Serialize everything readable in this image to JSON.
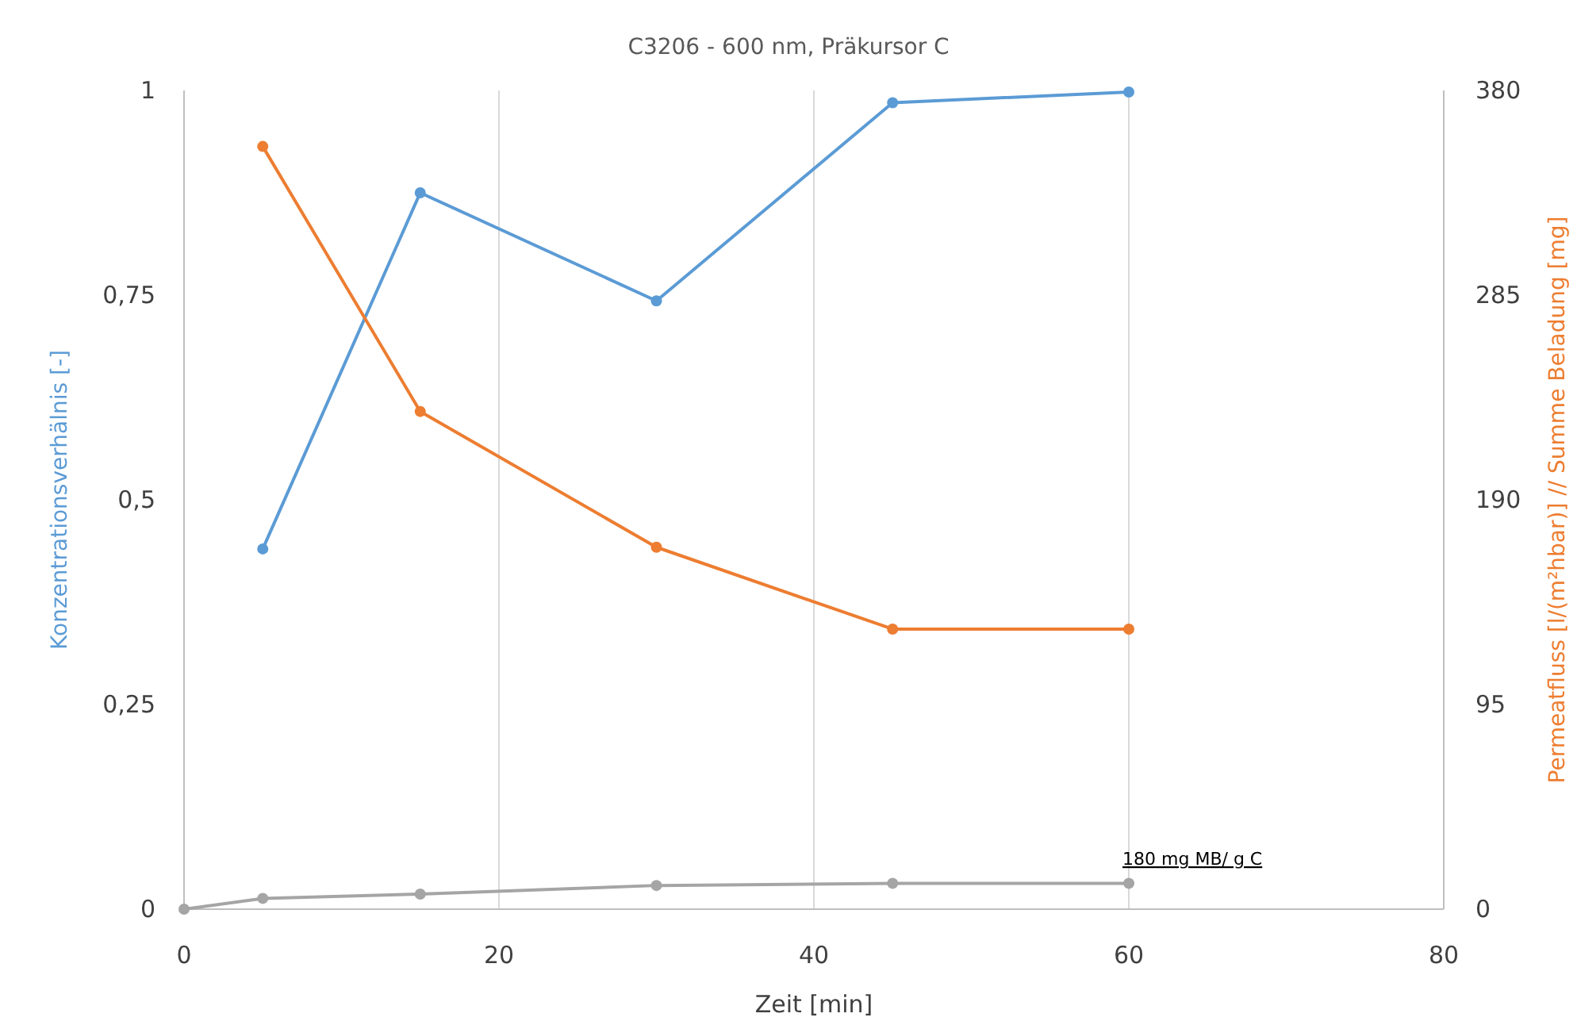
{
  "chart_data": {
    "type": "line",
    "title": "C3206 - 600 nm, Präkursor C",
    "xlabel": "Zeit [min]",
    "ylabel": "Konzentrationsverhälnis [-]",
    "y2label": "Permeatfluss [l/(m²hbar)] // Summe Beladung [mg]",
    "xlim": [
      0,
      80
    ],
    "xticks": [
      0,
      20,
      40,
      60,
      80
    ],
    "ylim": [
      0,
      1
    ],
    "yticks": [
      0,
      {
        "value": 0.25,
        "label": "0,25"
      },
      {
        "value": 0.5,
        "label": "0,5"
      },
      {
        "value": 0.75,
        "label": "0,75"
      },
      1
    ],
    "y2lim": [
      0,
      380
    ],
    "y2ticks": [
      0,
      95,
      190,
      285,
      380
    ],
    "grid": "x",
    "marker": "circle",
    "line_style": "solid",
    "series": [
      {
        "color": "#5b9bd5",
        "x": [
          5,
          15,
          30,
          45,
          60
        ],
        "values": [
          0.44,
          0.875,
          0.743,
          0.985,
          0.998
        ]
      },
      {
        "color": "#ed7d31",
        "axis": "y2",
        "x": [
          5,
          15,
          30,
          45,
          60
        ],
        "values": [
          354,
          231,
          168,
          130,
          130
        ]
      },
      {
        "color": "#a5a5a5",
        "axis": "y2",
        "x": [
          0,
          5,
          15,
          30,
          45,
          60
        ],
        "values": [
          0,
          5,
          7,
          11,
          12,
          12
        ]
      }
    ],
    "annotations": [
      "180 mg MB/ g C"
    ]
  }
}
